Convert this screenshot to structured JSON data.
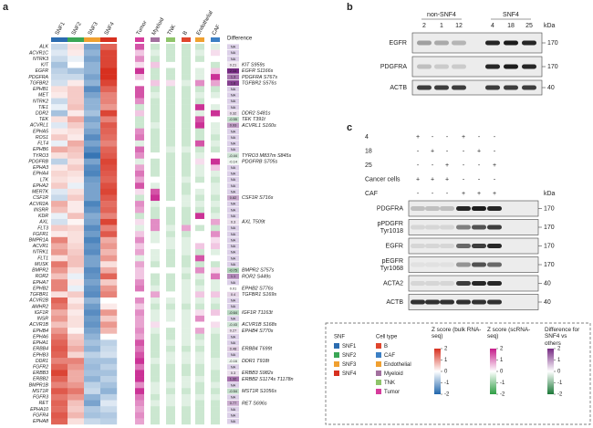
{
  "panel_labels": [
    "a",
    "b",
    "c"
  ],
  "heatmap": {
    "type": "heatmap",
    "bulk_columns": [
      "SNF1",
      "SNF2",
      "SNF3",
      "SNF4"
    ],
    "cell_columns": [
      "Tumor",
      "Myeloid",
      "TNK",
      "B",
      "Endothelial",
      "CAF"
    ],
    "difference_title": "Difference",
    "snf_colors": [
      "#2b6cb0",
      "#3aa655",
      "#f0a030",
      "#d7301f"
    ],
    "cell_colors": [
      "#d63c9c",
      "#a2709e",
      "#8fc46a",
      "#e0452c",
      "#f0a030",
      "#3b7fc4"
    ],
    "zlim": [
      -2,
      2
    ],
    "bulk_colormap": [
      "#2166ac",
      "#ffffff",
      "#d7301f"
    ],
    "cell_colormap": [
      "#2e9e44",
      "#ffffff",
      "#c51b8a"
    ],
    "difference_colormap": [
      "#1b7837",
      "#ffffff",
      "#762a83"
    ],
    "na_color": "#dcd0e8",
    "genes": [
      "ALK",
      "ACVR1C",
      "NTRK3",
      "KIT",
      "EGFR",
      "PDGFRA",
      "TGFBR2",
      "EPHB1",
      "MET",
      "NTRK2",
      "TIE1",
      "DDR2",
      "TEK",
      "ACVRL1",
      "EPHA5",
      "ROS1",
      "FLT4",
      "EPHB6",
      "TYRO3",
      "PDGFRB",
      "EPHA3",
      "EPHA4",
      "LTK",
      "EPHA2",
      "MERTK",
      "CSF1R",
      "ACVR2A",
      "INSRR",
      "KDR",
      "AXL",
      "FLT3",
      "FGFR1",
      "BMPR1A",
      "ACVR1",
      "NTRK1",
      "FLT1",
      "MUSK",
      "BMPR2",
      "ROR2",
      "EPHA7",
      "EPHB2",
      "TGFBR1",
      "ACVR2B",
      "AMHR2",
      "IGF1R",
      "INSR",
      "ACVR1B",
      "EPHB4",
      "EPHA6",
      "EPHA1",
      "ERBB4",
      "EPHB3",
      "DDR1",
      "FGFR2",
      "ERBB3",
      "ERBB2",
      "BMPR1B",
      "MST1R",
      "FGFR3",
      "RET",
      "EPHA10",
      "FGFR4",
      "EPHA8"
    ],
    "bulk": [
      [
        -0.5,
        0.3,
        -1.2,
        1.5
      ],
      [
        -0.3,
        0.2,
        -1,
        1.8
      ],
      [
        -0.5,
        -0.2,
        -1.2,
        1.8
      ],
      [
        -0.8,
        0,
        -1,
        1.8
      ],
      [
        -0.6,
        -0.8,
        -1,
        2
      ],
      [
        -0.5,
        -0.5,
        -1.2,
        2
      ],
      [
        -0.4,
        0.2,
        -1,
        1.8
      ],
      [
        0.3,
        0.5,
        -1.5,
        1.5
      ],
      [
        0.2,
        0.5,
        -1.2,
        1.2
      ],
      [
        -0.5,
        0.5,
        -1,
        1.2
      ],
      [
        -0.2,
        0.6,
        -1,
        1
      ],
      [
        -0.8,
        0.2,
        -0.8,
        1.8
      ],
      [
        0.3,
        0.8,
        -1.2,
        1.2
      ],
      [
        -0.3,
        0.5,
        -1,
        1.6
      ],
      [
        0.2,
        0.3,
        -1.2,
        1.5
      ],
      [
        0.5,
        0.2,
        -1.5,
        1.4
      ],
      [
        -0.2,
        0.8,
        -1.2,
        1.2
      ],
      [
        0.8,
        0.6,
        -1.5,
        1.5
      ],
      [
        0.3,
        0.5,
        -1.8,
        1.6
      ],
      [
        -0.6,
        0.3,
        -1.2,
        1.8
      ],
      [
        0.2,
        0.5,
        -1.5,
        1.7
      ],
      [
        0.4,
        0.3,
        -1.6,
        1.6
      ],
      [
        0.3,
        0.2,
        -1.3,
        1.5
      ],
      [
        0.5,
        -0.2,
        -1.2,
        1.7
      ],
      [
        -0.3,
        0.3,
        -1.2,
        1.8
      ],
      [
        -0.5,
        0.5,
        -1.2,
        1.6
      ],
      [
        0.8,
        0.2,
        -1.6,
        1.4
      ],
      [
        0.6,
        0.2,
        -1.4,
        1.5
      ],
      [
        -0.2,
        0.6,
        -1.1,
        1.2
      ],
      [
        -0.4,
        0.1,
        -1.2,
        1.8
      ],
      [
        0.5,
        0.4,
        -1.5,
        1.2
      ],
      [
        0.2,
        0.3,
        -1.3,
        1.6
      ],
      [
        1.2,
        0.3,
        -1.6,
        0.8
      ],
      [
        0.8,
        0.4,
        -1.4,
        1
      ],
      [
        1,
        0.5,
        -1.5,
        0.7
      ],
      [
        0.3,
        0.6,
        -1.2,
        1
      ],
      [
        1.3,
        0.6,
        -1.2,
        0.3
      ],
      [
        1,
        0.3,
        -1.5,
        0.8
      ],
      [
        0.6,
        -0.2,
        -1.4,
        1.5
      ],
      [
        1.2,
        0.2,
        -1.2,
        0.5
      ],
      [
        1.2,
        -0.2,
        -1.4,
        1
      ],
      [
        0.3,
        0.5,
        -1.5,
        1.2
      ],
      [
        1.5,
        0.2,
        -1,
        0
      ],
      [
        1.3,
        0.4,
        -1.3,
        0.2
      ],
      [
        0.8,
        0.2,
        -1.5,
        1
      ],
      [
        1,
        0.3,
        -1.3,
        0.5
      ],
      [
        0.6,
        0.3,
        -1.4,
        1
      ],
      [
        1,
        0.1,
        -1.2,
        0.7
      ],
      [
        1.3,
        0.5,
        -1,
        0
      ],
      [
        1.5,
        0.6,
        -0.8,
        -0.6
      ],
      [
        1.6,
        0.8,
        -1,
        -0.5
      ],
      [
        1.5,
        0.4,
        -0.6,
        -0.4
      ],
      [
        1.2,
        1.2,
        -0.8,
        -0.8
      ],
      [
        1.5,
        1,
        -0.9,
        -0.6
      ],
      [
        1.8,
        0.8,
        -0.8,
        -0.8
      ],
      [
        1.5,
        0.8,
        -1,
        -0.6
      ],
      [
        1.2,
        1,
        -0.6,
        -0.8
      ],
      [
        1.6,
        1.3,
        -0.5,
        -1
      ],
      [
        1.3,
        1,
        -1,
        -0.6
      ],
      [
        1.5,
        0.6,
        -1.2,
        -0.3
      ],
      [
        1.4,
        0.5,
        -0.7,
        -0.5
      ],
      [
        1.6,
        0.7,
        -0.8,
        -0.7
      ],
      [
        1.5,
        0.3,
        -0.5,
        -0.6
      ]
    ],
    "cell": [
      [
        1.5,
        -0.5,
        -0.5,
        -0.5,
        -0.5,
        -0.3
      ],
      [
        0.5,
        -0.3,
        -0.5,
        -0.5,
        -0.3,
        0.3
      ],
      [
        1,
        -0.5,
        -0.5,
        -0.5,
        -0.5,
        0
      ],
      [
        0.3,
        0.5,
        0,
        -0.5,
        0,
        -0.5
      ],
      [
        1.8,
        -0.5,
        -0.5,
        -0.5,
        -0.3,
        0.5
      ],
      [
        0.5,
        -0.5,
        -0.5,
        -0.5,
        -0.3,
        1.8
      ],
      [
        0,
        0.5,
        0.3,
        -0.3,
        1,
        0.8
      ],
      [
        1.5,
        -0.5,
        -0.5,
        -0.5,
        -0.5,
        -0.5
      ],
      [
        1.5,
        -0.3,
        -0.5,
        -0.5,
        -0.3,
        -0.3
      ],
      [
        1,
        -0.5,
        -0.5,
        -0.5,
        -0.5,
        0
      ],
      [
        -0.5,
        -0.5,
        -0.5,
        -0.5,
        1.8,
        -0.3
      ],
      [
        0.5,
        -0.5,
        -0.5,
        -0.5,
        -0.3,
        1.8
      ],
      [
        -0.5,
        -0.5,
        -0.5,
        -0.5,
        1.5,
        0
      ],
      [
        -0.5,
        -0.3,
        -0.5,
        -0.5,
        1.8,
        -0.3
      ],
      [
        1,
        -0.5,
        -0.5,
        -0.5,
        -0.5,
        -0.3
      ],
      [
        1.2,
        -0.5,
        -0.5,
        -0.5,
        -0.5,
        -0.5
      ],
      [
        -0.3,
        -0.5,
        -0.5,
        -0.5,
        1.5,
        -0.3
      ],
      [
        1.3,
        -0.5,
        -0.3,
        -0.3,
        -0.5,
        -0.5
      ],
      [
        1,
        0,
        -0.5,
        -0.5,
        -0.3,
        0
      ],
      [
        -0.3,
        -0.5,
        -0.5,
        -0.5,
        0.3,
        1.8
      ],
      [
        0.8,
        -0.5,
        -0.5,
        -0.5,
        -0.3,
        0.5
      ],
      [
        1.2,
        -0.5,
        -0.5,
        -0.5,
        -0.3,
        -0.3
      ],
      [
        0.8,
        0,
        -0.5,
        -0.3,
        -0.5,
        -0.5
      ],
      [
        1.5,
        -0.3,
        -0.5,
        -0.5,
        0,
        -0.3
      ],
      [
        0.3,
        1.5,
        -0.5,
        -0.5,
        -0.3,
        -0.3
      ],
      [
        -0.5,
        1.8,
        -0.5,
        -0.3,
        -0.5,
        -0.5
      ],
      [
        1,
        -0.3,
        0,
        -0.3,
        -0.3,
        -0.3
      ],
      [
        0.8,
        -0.5,
        -0.5,
        -0.5,
        -0.5,
        -0.5
      ],
      [
        -0.5,
        -0.5,
        -0.5,
        -0.5,
        1.8,
        -0.3
      ],
      [
        0.3,
        1,
        -0.5,
        -0.5,
        0,
        0.8
      ],
      [
        -0.3,
        1,
        -0.3,
        0.8,
        -0.5,
        -0.5
      ],
      [
        0.5,
        -0.3,
        -0.5,
        -0.5,
        0,
        1
      ],
      [
        1,
        -0.3,
        -0.3,
        -0.3,
        0,
        0.3
      ],
      [
        0.5,
        0,
        -0.3,
        -0.3,
        0.5,
        0.5
      ],
      [
        0.8,
        -0.3,
        -0.5,
        -0.3,
        -0.5,
        -0.3
      ],
      [
        -0.3,
        -0.3,
        -0.5,
        -0.5,
        1.5,
        0
      ],
      [
        0.8,
        -0.5,
        -0.5,
        -0.5,
        -0.5,
        -0.5
      ],
      [
        0.5,
        0,
        0,
        -0.3,
        1,
        0.3
      ],
      [
        0.5,
        -0.5,
        -0.5,
        -0.5,
        -0.3,
        1.2
      ],
      [
        1,
        -0.5,
        -0.5,
        -0.3,
        -0.5,
        -0.3
      ],
      [
        1.2,
        -0.3,
        -0.5,
        -0.3,
        -0.3,
        -0.3
      ],
      [
        0,
        0.8,
        0,
        -0.3,
        0.5,
        0.5
      ],
      [
        1,
        -0.3,
        -0.3,
        -0.3,
        -0.3,
        -0.3
      ],
      [
        0.5,
        -0.5,
        -0.5,
        -0.5,
        -0.5,
        -0.5
      ],
      [
        1,
        -0.3,
        -0.3,
        -0.3,
        0.3,
        0.5
      ],
      [
        0.8,
        -0.3,
        -0.3,
        -0.3,
        1,
        0
      ],
      [
        0.8,
        0.3,
        0,
        -0.3,
        0,
        0.3
      ],
      [
        1,
        -0.3,
        -0.5,
        -0.3,
        0.8,
        -0.3
      ],
      [
        0.8,
        -0.5,
        -0.5,
        -0.3,
        -0.5,
        -0.5
      ],
      [
        1.5,
        -0.5,
        -0.3,
        -0.3,
        -0.3,
        -0.5
      ],
      [
        1.2,
        -0.5,
        -0.5,
        -0.5,
        -0.5,
        -0.5
      ],
      [
        1.5,
        -0.5,
        -0.3,
        -0.3,
        -0.3,
        -0.5
      ],
      [
        1.8,
        -0.3,
        -0.3,
        -0.3,
        -0.3,
        -0.3
      ],
      [
        1.2,
        -0.5,
        -0.5,
        -0.5,
        -0.5,
        -0.3
      ],
      [
        1.8,
        -0.5,
        -0.5,
        -0.5,
        -0.5,
        -0.5
      ],
      [
        1.8,
        -0.5,
        -0.5,
        -0.3,
        -0.3,
        -0.5
      ],
      [
        1,
        -0.3,
        -0.3,
        -0.3,
        -0.5,
        -0.3
      ],
      [
        1.8,
        -0.3,
        -0.5,
        -0.5,
        -0.5,
        -0.5
      ],
      [
        1.2,
        -0.5,
        -0.3,
        -0.3,
        -0.3,
        -0.3
      ],
      [
        1,
        -0.3,
        -0.3,
        -0.3,
        -0.5,
        -0.5
      ],
      [
        0.8,
        -0.5,
        -0.5,
        -0.5,
        -0.5,
        -0.5
      ],
      [
        1,
        -0.5,
        -0.5,
        -0.5,
        -0.5,
        -0.5
      ],
      [
        0.8,
        -0.5,
        -0.5,
        -0.5,
        -0.5,
        -0.5
      ]
    ],
    "difference": [
      "NA",
      "NA",
      "NA",
      0.21,
      2.14,
      1.3,
      1.8,
      "NA",
      "NA",
      "NA",
      "NA",
      0.32,
      -0.55,
      0.93,
      "NA",
      "NA",
      "NA",
      "NA",
      -0.44,
      -0.14,
      "NA",
      "NA",
      "NA",
      "NA",
      "NA",
      0.82,
      "NA",
      "NA",
      "NA",
      0.3,
      "NA",
      "NA",
      "NA",
      "NA",
      "NA",
      "NA",
      "NA",
      -0.75,
      1.1,
      "NA",
      0.01,
      0.4,
      "NA",
      "NA",
      -0.64,
      "NA",
      -0.43,
      0.27,
      "NA",
      "NA",
      0.48,
      "NA",
      -0.16,
      "NA",
      0.3,
      1.32,
      "NA",
      -0.54,
      "NA",
      0.77,
      "NA",
      "NA",
      "NA"
    ],
    "sites": [
      null,
      null,
      null,
      {
        "text": "KIT S959s",
        "color": "#333333"
      },
      {
        "text": "EGFR S1166s",
        "color": "#7b3fa0"
      },
      {
        "text": "PDGFRA S767s",
        "color": "#7b3fa0"
      },
      {
        "text": "TGFBR2 S576s",
        "color": "#7b3fa0"
      },
      null,
      null,
      null,
      null,
      {
        "text": "DDR2 S481s",
        "color": "#333333"
      },
      {
        "text": "TEK T391t",
        "color": "#333333"
      },
      {
        "text": "ACVRL1 S160s",
        "color": "#7b3fa0"
      },
      null,
      null,
      null,
      null,
      {
        "text": "TYRO3 M837m S845s",
        "color": "#333333"
      },
      {
        "text": "PDGFRB S705s",
        "color": "#333333"
      },
      null,
      null,
      null,
      null,
      null,
      {
        "text": "CSF1R S716s",
        "color": "#333333"
      },
      null,
      null,
      null,
      {
        "text": "AXL T509t",
        "color": "#333333"
      },
      null,
      null,
      null,
      null,
      null,
      null,
      null,
      {
        "text": "BMPR2 S757s",
        "color": "#333333"
      },
      {
        "text": "ROR2 S449s",
        "color": "#333333"
      },
      null,
      {
        "text": "EPHB2 S776s",
        "color": "#333333"
      },
      {
        "text": "TGFBR1 S169s",
        "color": "#333333"
      },
      null,
      null,
      {
        "text": "IGF1R T1163t",
        "color": "#333333"
      },
      null,
      {
        "text": "ACVR1B S168s",
        "color": "#333333"
      },
      {
        "text": "EPHB4 S770s",
        "color": "#333333"
      },
      null,
      null,
      {
        "text": "ERBB4 T699t",
        "color": "#333333"
      },
      null,
      {
        "text": "DDR1 T918t",
        "color": "#333333"
      },
      null,
      {
        "text": "ERBB3 S982s",
        "color": "#333333"
      },
      {
        "text": "ERBB2 S1174s T1178n",
        "color": "#7b3fa0"
      },
      null,
      {
        "text": "MST1R S1056s",
        "color": "#333333"
      },
      null,
      {
        "text": "RET S696s",
        "color": "#333333"
      },
      null,
      null,
      null
    ]
  },
  "legend": {
    "snf_title": "SNF",
    "cell_title": "Cell type",
    "cell_types": [
      {
        "name": "B",
        "color": "#e0452c"
      },
      {
        "name": "CAF",
        "color": "#3b7fc4"
      },
      {
        "name": "Endothelial",
        "color": "#f0a030"
      },
      {
        "name": "Myeloid",
        "color": "#a2709e"
      },
      {
        "name": "TNK",
        "color": "#8fc46a"
      },
      {
        "name": "Tumor",
        "color": "#d63c9c"
      }
    ],
    "colorbars": [
      {
        "title": "Z score (bulk RNA-seq)",
        "lim": [
          -2,
          2
        ],
        "ticks": [
          2,
          1,
          0,
          -1,
          -2
        ]
      },
      {
        "title": "Z score (scRNA-seq)",
        "lim": [
          -2,
          2
        ],
        "ticks": [
          2,
          1,
          0,
          -1,
          -2
        ]
      },
      {
        "title": "Difference for SNF4 vs others",
        "lim": [
          -2,
          2
        ],
        "ticks": [
          2,
          1,
          0,
          -1,
          -2
        ]
      }
    ]
  },
  "blot_b": {
    "groups": [
      {
        "label": "non-SNF4",
        "lanes": [
          "2",
          "1",
          "12"
        ]
      },
      {
        "label": "SNF4",
        "lanes": [
          "4",
          "18",
          "25"
        ]
      }
    ],
    "kda_label": "kDa",
    "rows": [
      {
        "name": [
          "EGFR"
        ],
        "kda": 170
      },
      {
        "name": [
          "PDGFRA"
        ],
        "kda": 170
      },
      {
        "name": [
          "ACTB"
        ],
        "kda": 40
      }
    ]
  },
  "blot_c": {
    "conditions": [
      {
        "name": "4",
        "marks": [
          "+",
          "-",
          "-",
          "+",
          "-",
          "-"
        ]
      },
      {
        "name": "18",
        "marks": [
          "-",
          "+",
          "-",
          "-",
          "+",
          "-"
        ]
      },
      {
        "name": "25",
        "marks": [
          "-",
          "-",
          "+",
          "-",
          "-",
          "+"
        ]
      },
      {
        "name": "Cancer cells",
        "marks": [
          "+",
          "+",
          "+",
          "-",
          "-",
          "-"
        ]
      },
      {
        "name": "CAF",
        "marks": [
          "-",
          "-",
          "-",
          "+",
          "+",
          "+"
        ]
      }
    ],
    "kda_label": "kDa",
    "rows": [
      {
        "name": [
          "PDGFRA"
        ],
        "kda": 170
      },
      {
        "name": [
          "pPDGFR",
          "Tyr1018"
        ],
        "kda": 170
      },
      {
        "name": [
          "EGFR"
        ],
        "kda": 170
      },
      {
        "name": [
          "pEGFR",
          "Tyr1068"
        ],
        "kda": 170
      },
      {
        "name": [
          "ACTA2"
        ],
        "kda": 40
      },
      {
        "name": [
          "ACTB"
        ],
        "kda": 40
      }
    ]
  }
}
